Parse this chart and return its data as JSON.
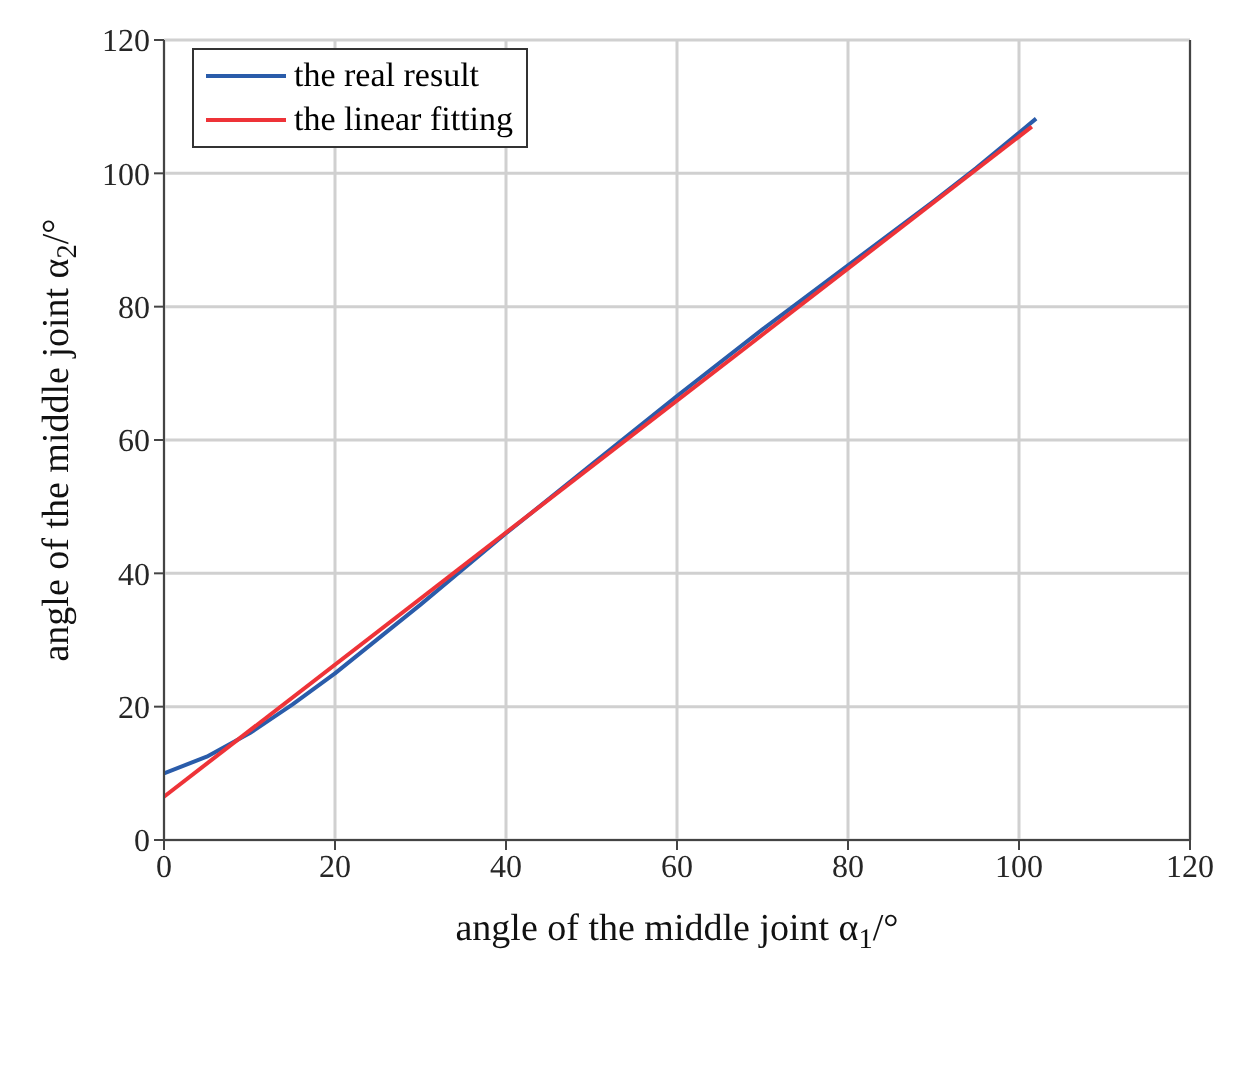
{
  "chart_data": {
    "type": "line",
    "xlabel": "angle of the middle joint α$_{1}$/°",
    "ylabel": "angle of the middle joint α$_{2}$/°",
    "xlim": [
      0,
      120
    ],
    "ylim": [
      0,
      120
    ],
    "xticks": [
      0,
      20,
      40,
      60,
      80,
      100,
      120
    ],
    "yticks": [
      0,
      20,
      40,
      60,
      80,
      100,
      120
    ],
    "grid": true,
    "legend": "top left",
    "line_style": "solid",
    "marker": "none",
    "series": [
      {
        "name": "the real result",
        "color": "#2a5caa",
        "x": [
          0,
          5,
          10,
          15,
          20,
          30,
          40,
          50,
          60,
          70,
          80,
          90,
          95,
          102
        ],
        "values": [
          10,
          12.5,
          16,
          20.3,
          25,
          35.3,
          46,
          56.3,
          66.6,
          76.6,
          86.2,
          95.8,
          100.8,
          108.2
        ]
      },
      {
        "name": "the linear fitting",
        "color": "#ee3338",
        "x": [
          0,
          101.5
        ],
        "values": [
          6.5,
          107
        ]
      }
    ]
  }
}
